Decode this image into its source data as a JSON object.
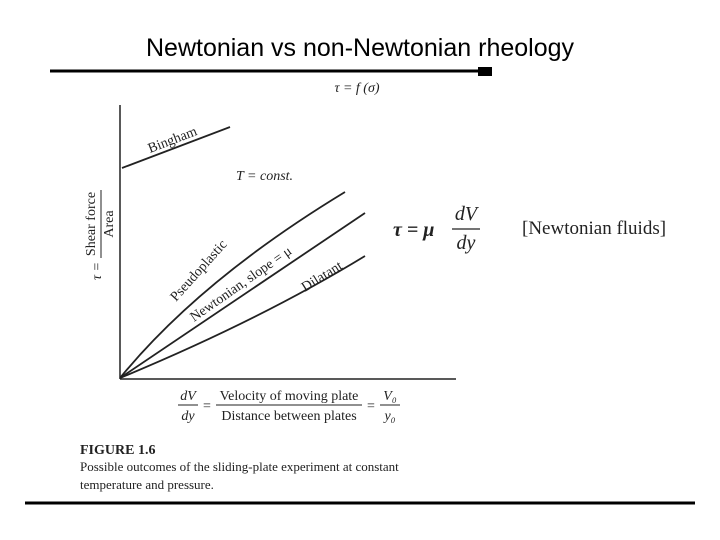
{
  "title": "Newtonian vs non-Newtonian rheology",
  "figure": {
    "top_label": "τ = f (σ)",
    "curves": [
      {
        "label": "Bingham"
      },
      {
        "label": "Pseudoplastic"
      },
      {
        "label": "Newtonian, slope = μ"
      },
      {
        "label": "Dilatant"
      }
    ],
    "annotation": "T = const.",
    "y_axis": {
      "lhs": "τ =",
      "numerator": "Shear force",
      "denominator": "Area"
    },
    "x_axis": {
      "lhs_numerator": "dV",
      "lhs_denominator": "dy",
      "equals_1": "=",
      "numerator": "Velocity of moving plate",
      "denominator": "Distance between plates",
      "equals_2": "=",
      "rhs_numerator": "V₀",
      "rhs_denominator": "y₀"
    },
    "equation": {
      "lhs": "τ = μ",
      "numerator": "dV",
      "denominator": "dy",
      "note": "[Newtonian fluids]"
    },
    "caption": {
      "heading": "FIGURE 1.6",
      "lines": [
        "Possible outcomes of the sliding-plate experiment at constant",
        "temperature and pressure."
      ]
    }
  }
}
